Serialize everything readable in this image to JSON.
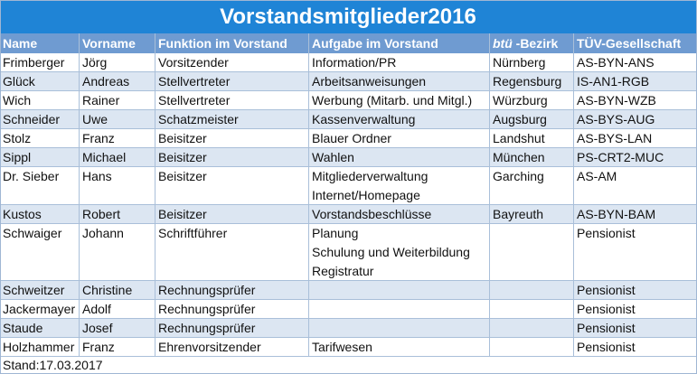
{
  "title": "Vorstandsmitglieder2016",
  "columns": [
    "Name",
    "Vorname",
    "Funktion im Vorstand",
    "Aufgabe im Vorstand",
    "btü",
    "-Bezirk",
    "TÜV-Gesellschaft"
  ],
  "rows": [
    {
      "name": "Frimberger",
      "vorname": "Jörg",
      "funktion": "Vorsitzender",
      "aufgabe": [
        "Information/PR"
      ],
      "bezirk": "Nürnberg",
      "tuev": "AS-BYN-ANS"
    },
    {
      "name": "Glück",
      "vorname": "Andreas",
      "funktion": "Stellvertreter",
      "aufgabe": [
        "Arbeitsanweisungen"
      ],
      "bezirk": "Regensburg",
      "tuev": "IS-AN1-RGB"
    },
    {
      "name": "Wich",
      "vorname": "Rainer",
      "funktion": "Stellvertreter",
      "aufgabe": [
        "Werbung (Mitarb. und Mitgl.)"
      ],
      "bezirk": "Würzburg",
      "tuev": "AS-BYN-WZB"
    },
    {
      "name": "Schneider",
      "vorname": "Uwe",
      "funktion": "Schatzmeister",
      "aufgabe": [
        "Kassenverwaltung"
      ],
      "bezirk": "Augsburg",
      "tuev": "AS-BYS-AUG"
    },
    {
      "name": "Stolz",
      "vorname": "Franz",
      "funktion": "Beisitzer",
      "aufgabe": [
        "Blauer Ordner"
      ],
      "bezirk": "Landshut",
      "tuev": "AS-BYS-LAN"
    },
    {
      "name": "Sippl",
      "vorname": "Michael",
      "funktion": "Beisitzer",
      "aufgabe": [
        "Wahlen"
      ],
      "bezirk": "München",
      "tuev": "PS-CRT2-MUC"
    },
    {
      "name": "Dr. Sieber",
      "vorname": "Hans",
      "funktion": "Beisitzer",
      "aufgabe": [
        "Mitgliederverwaltung",
        "Internet/Homepage"
      ],
      "bezirk": "Garching",
      "tuev": "AS-AM"
    },
    {
      "name": "Kustos",
      "vorname": "Robert",
      "funktion": "Beisitzer",
      "aufgabe": [
        "Vorstandsbeschlüsse"
      ],
      "bezirk": "Bayreuth",
      "tuev": "AS-BYN-BAM"
    },
    {
      "name": "Schwaiger",
      "vorname": "Johann",
      "funktion": "Schriftführer",
      "aufgabe": [
        "Planung",
        "Schulung und Weiterbildung",
        "Registratur"
      ],
      "bezirk": "",
      "tuev": "Pensionist"
    },
    {
      "name": "Schweitzer",
      "vorname": "Christine",
      "funktion": "Rechnungsprüfer",
      "aufgabe": [
        ""
      ],
      "bezirk": "",
      "tuev": "Pensionist"
    },
    {
      "name": "Jackermayer",
      "vorname": "Adolf",
      "funktion": "Rechnungsprüfer",
      "aufgabe": [
        ""
      ],
      "bezirk": "",
      "tuev": "Pensionist"
    },
    {
      "name": "Staude",
      "vorname": "Josef",
      "funktion": "Rechnungsprüfer",
      "aufgabe": [
        ""
      ],
      "bezirk": "",
      "tuev": "Pensionist"
    },
    {
      "name": "Holzhammer",
      "vorname": "Franz",
      "funktion": "Ehrenvorsitzender",
      "aufgabe": [
        "Tarifwesen"
      ],
      "bezirk": "",
      "tuev": "Pensionist"
    }
  ],
  "footer": "Stand:17.03.2017",
  "colors": {
    "title_bg": "#1f84d6",
    "header_bg": "#6f9bd1",
    "alt_row_bg": "#dce6f2",
    "grid": "#a9bfd9"
  }
}
